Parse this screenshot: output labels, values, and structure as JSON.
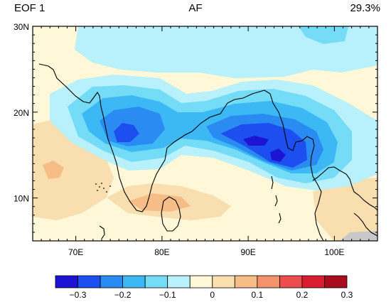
{
  "header": {
    "left": "EOF 1",
    "center": "AF",
    "right": "29.3%"
  },
  "map": {
    "lon_range": [
      65,
      105
    ],
    "lat_range": [
      5,
      30
    ],
    "lon_ticks": [
      {
        "value": 70,
        "label": "70E"
      },
      {
        "value": 80,
        "label": "80E"
      },
      {
        "value": 90,
        "label": "90E"
      },
      {
        "value": 100,
        "label": "100E"
      }
    ],
    "lat_ticks": [
      {
        "value": 10,
        "label": "10N"
      },
      {
        "value": 20,
        "label": "20N"
      },
      {
        "value": 30,
        "label": "30N"
      }
    ]
  },
  "colorbar": {
    "colors": [
      "#1c14d2",
      "#1d4ff0",
      "#2a8cf2",
      "#3cb9f5",
      "#75dcf8",
      "#b8f0fb",
      "#fff8d8",
      "#f9deb0",
      "#f6be86",
      "#f2936b",
      "#ec4e4e",
      "#d71d2f",
      "#a80d1e"
    ],
    "levels": [
      {
        "value": -0.3,
        "label": "−0.3"
      },
      {
        "value": -0.2,
        "label": "−0.2"
      },
      {
        "value": -0.1,
        "label": "−0.1"
      },
      {
        "value": 0,
        "label": "0"
      },
      {
        "value": 0.1,
        "label": "0.1"
      },
      {
        "value": 0.2,
        "label": "0.2"
      },
      {
        "value": 0.3,
        "label": "0.3"
      }
    ]
  }
}
